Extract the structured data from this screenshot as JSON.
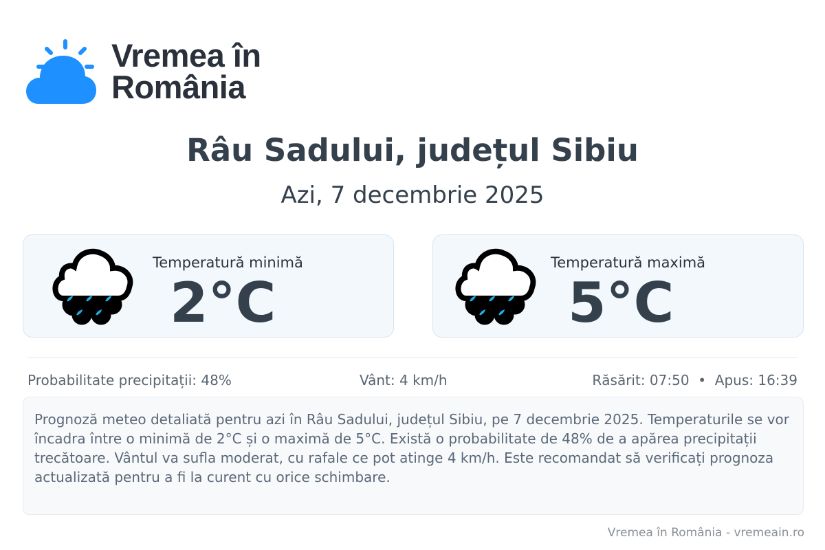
{
  "brand": {
    "line1": "Vremea în",
    "line2": "România",
    "logo_icon": "sun-cloud-icon",
    "color": "#1e90ff"
  },
  "header": {
    "title": "Râu Sadului, județul Sibiu",
    "date": "Azi, 7 decembrie 2025"
  },
  "cards": [
    {
      "label": "Temperatură minimă",
      "value": "2°C",
      "icon": "rain-cloud-icon"
    },
    {
      "label": "Temperatură maximă",
      "value": "5°C",
      "icon": "rain-cloud-icon"
    }
  ],
  "info": {
    "precip": "Probabilitate precipitații: 48%",
    "wind": "Vânt: 4 km/h",
    "sun": "Răsărit: 07:50  •  Apus: 16:39"
  },
  "description": "Prognoză meteo detaliată pentru azi în Râu Sadului, județul Sibiu, pe 7 decembrie 2025. Temperaturile se vor încadra între o minimă de 2°C și o maximă de 5°C. Există o probabilitate de 48% de a apărea precipitații trecătoare. Vântul va sufla moderat, cu rafale ce pot atinge 4 km/h. Este recomandat să verificați prognoza actualizată pentru a fi la curent cu orice schimbare.",
  "footer": "Vremea în România - vremeain.ro"
}
